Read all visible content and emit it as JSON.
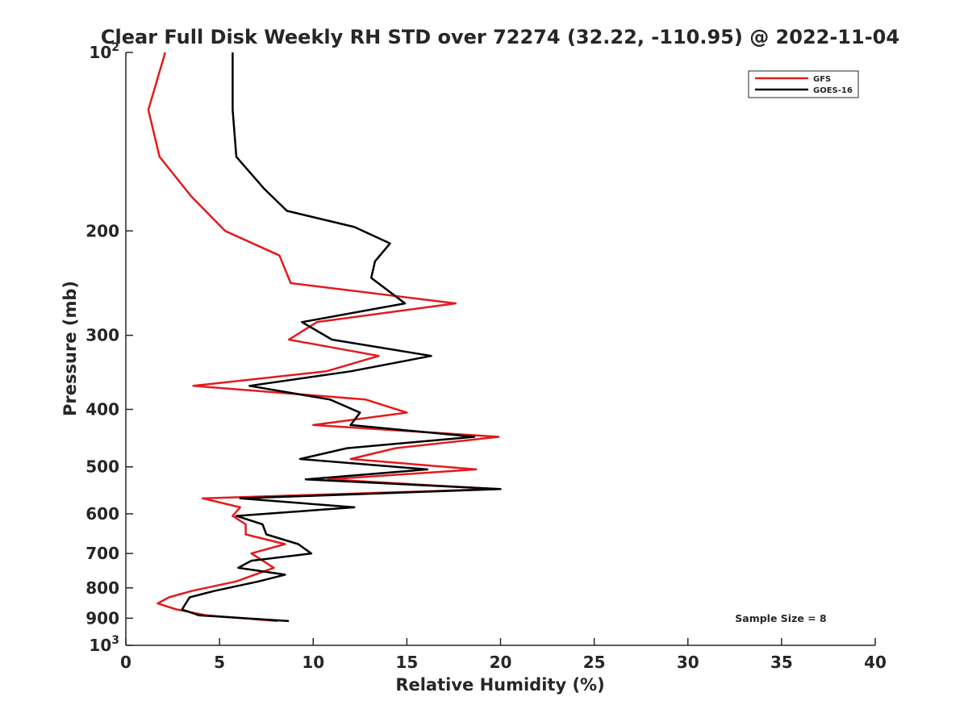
{
  "chart_data": {
    "type": "line",
    "title": "Clear Full Disk Weekly RH STD over 72274 (32.22, -110.95) @ 2022-11-04",
    "xlabel": "Relative Humidity (%)",
    "ylabel": "Pressure (mb)",
    "xlim": [
      0,
      40
    ],
    "ylim": [
      100,
      1000
    ],
    "y_scale": "log",
    "y_reversed": true,
    "grid": false,
    "legend_position": "top-right",
    "x_ticks": [
      "0",
      "5",
      "10",
      "15",
      "20",
      "25",
      "30",
      "35",
      "40"
    ],
    "y_ticks": [
      {
        "value": 100,
        "label": "10",
        "sup": "2"
      },
      {
        "value": 200,
        "label": "200",
        "sup": ""
      },
      {
        "value": 300,
        "label": "300",
        "sup": ""
      },
      {
        "value": 400,
        "label": "400",
        "sup": ""
      },
      {
        "value": 500,
        "label": "500",
        "sup": ""
      },
      {
        "value": 600,
        "label": "600",
        "sup": ""
      },
      {
        "value": 700,
        "label": "700",
        "sup": ""
      },
      {
        "value": 800,
        "label": "800",
        "sup": ""
      },
      {
        "value": 900,
        "label": "900",
        "sup": ""
      },
      {
        "value": 1000,
        "label": "10",
        "sup": "3"
      }
    ],
    "annotation": "Sample Size = 8",
    "series": [
      {
        "name": "GFS",
        "color": "#e31a1c",
        "points": [
          [
            2.1,
            100
          ],
          [
            1.2,
            125
          ],
          [
            1.8,
            150
          ],
          [
            3.5,
            175
          ],
          [
            5.3,
            200
          ],
          [
            8.2,
            220
          ],
          [
            8.8,
            245
          ],
          [
            17.6,
            265
          ],
          [
            10.2,
            285
          ],
          [
            8.7,
            305
          ],
          [
            13.5,
            325
          ],
          [
            10.7,
            345
          ],
          [
            3.6,
            365
          ],
          [
            12.8,
            385
          ],
          [
            15.0,
            405
          ],
          [
            10.0,
            425
          ],
          [
            19.9,
            445
          ],
          [
            14.4,
            465
          ],
          [
            12.0,
            485
          ],
          [
            18.7,
            505
          ],
          [
            10.8,
            525
          ],
          [
            19.8,
            545
          ],
          [
            4.1,
            565
          ],
          [
            6.1,
            585
          ],
          [
            5.7,
            605
          ],
          [
            6.4,
            625
          ],
          [
            6.4,
            650
          ],
          [
            8.5,
            675
          ],
          [
            6.7,
            700
          ],
          [
            7.9,
            740
          ],
          [
            5.9,
            780
          ],
          [
            3.5,
            810
          ],
          [
            2.3,
            830
          ],
          [
            1.7,
            850
          ],
          [
            2.7,
            870
          ],
          [
            4.3,
            890
          ],
          [
            8.1,
            910
          ]
        ]
      },
      {
        "name": "GOES-16",
        "color": "#000000",
        "points": [
          [
            5.7,
            100
          ],
          [
            5.7,
            125
          ],
          [
            5.9,
            150
          ],
          [
            7.4,
            170
          ],
          [
            8.6,
            185
          ],
          [
            12.2,
            197
          ],
          [
            14.1,
            210
          ],
          [
            13.3,
            225
          ],
          [
            13.1,
            240
          ],
          [
            14.9,
            265
          ],
          [
            9.4,
            285
          ],
          [
            11.0,
            305
          ],
          [
            16.3,
            325
          ],
          [
            12.0,
            345
          ],
          [
            6.6,
            365
          ],
          [
            10.9,
            385
          ],
          [
            12.5,
            405
          ],
          [
            12.0,
            425
          ],
          [
            18.6,
            445
          ],
          [
            11.8,
            465
          ],
          [
            9.3,
            485
          ],
          [
            16.1,
            505
          ],
          [
            9.6,
            525
          ],
          [
            20.0,
            545
          ],
          [
            6.1,
            565
          ],
          [
            12.2,
            585
          ],
          [
            5.9,
            605
          ],
          [
            7.3,
            625
          ],
          [
            7.5,
            650
          ],
          [
            9.2,
            675
          ],
          [
            9.9,
            700
          ],
          [
            6.7,
            720
          ],
          [
            6.0,
            740
          ],
          [
            8.5,
            760
          ],
          [
            7.1,
            780
          ],
          [
            4.7,
            810
          ],
          [
            3.4,
            830
          ],
          [
            3.2,
            850
          ],
          [
            3.0,
            870
          ],
          [
            3.9,
            890
          ],
          [
            8.7,
            910
          ]
        ]
      }
    ]
  }
}
